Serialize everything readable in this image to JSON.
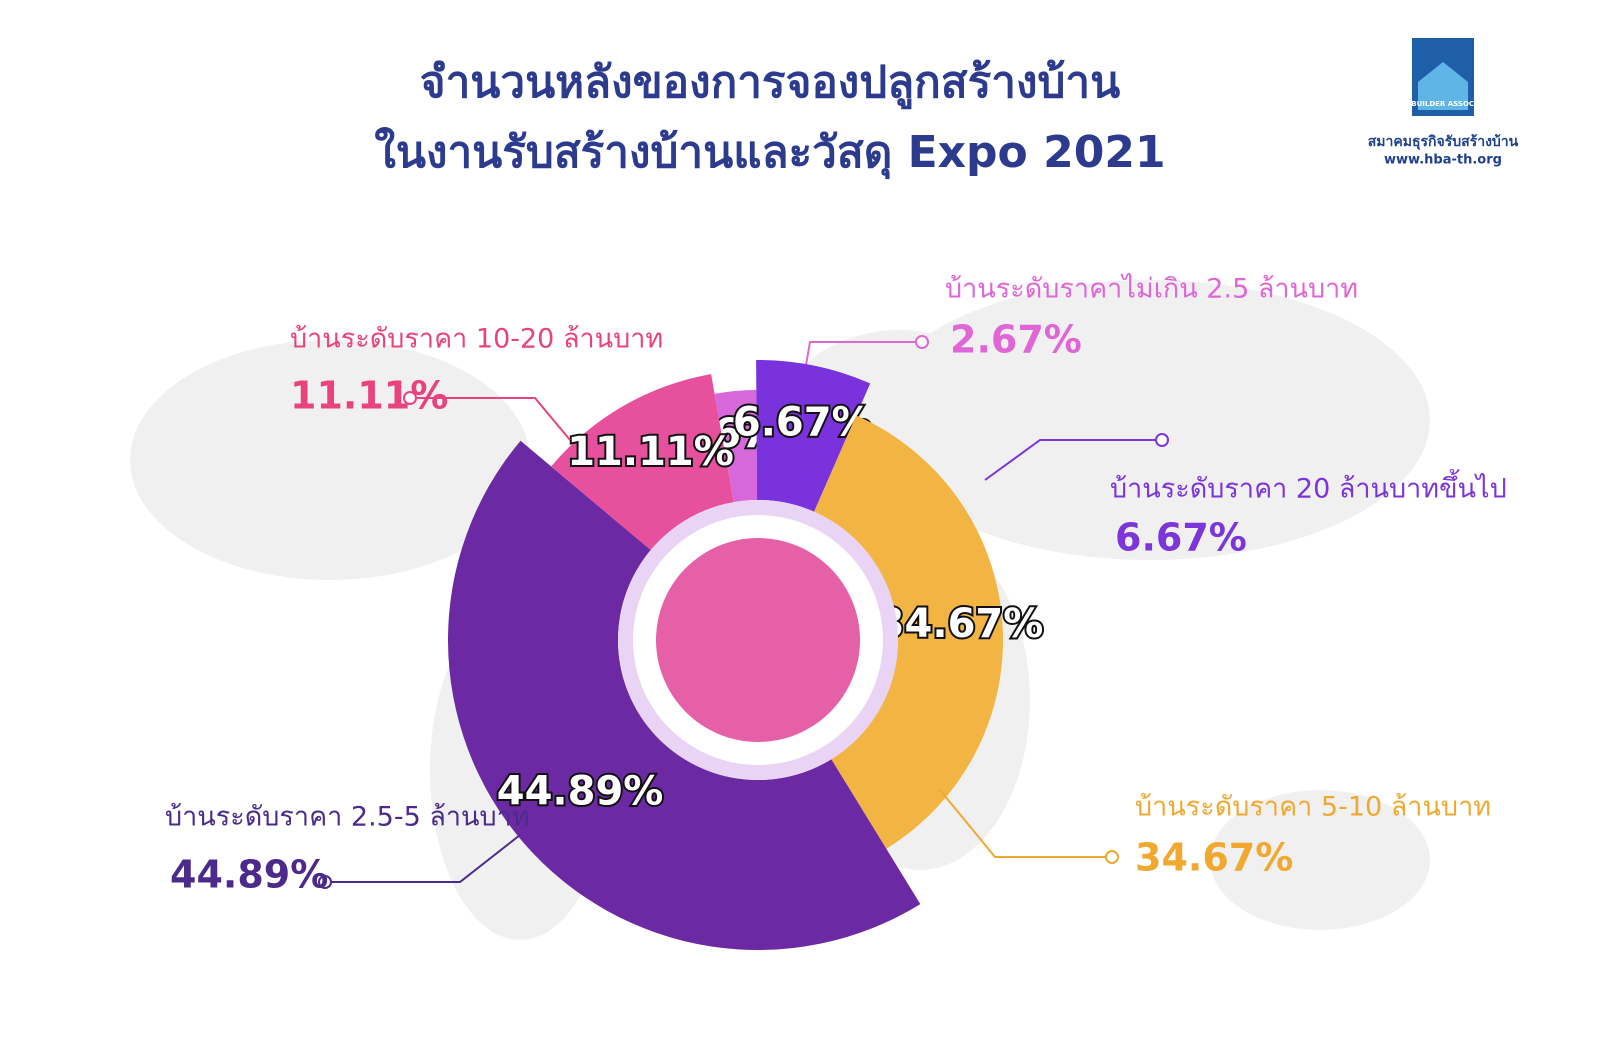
{
  "chart_data": {
    "type": "pie",
    "title": "จำนวนหลังของการจองปลูกสร้างบ้าน",
    "subtitle": "ในงานรับสร้างบ้านและวัสดุ Expo 2021",
    "logo": {
      "mark": "HOME BUILDER ASSOCIATION",
      "name": "สมาคมธุรกิจรับสร้างบ้าน",
      "url": "www.hba-th.org"
    },
    "categories": [
      "บ้านระดับราคาไม่เกิน 2.5 ล้านบาท",
      "บ้านระดับราคา 20 ล้านบาทขึ้นไป",
      "บ้านระดับราคา 5-10 ล้านบาท",
      "บ้านระดับราคา 2.5-5 ล้านบาท",
      "บ้านระดับราคา 10-20 ล้านบาท"
    ],
    "values": [
      2.67,
      6.67,
      34.67,
      44.89,
      11.11
    ],
    "value_labels": [
      "2.67%",
      "6.67%",
      "34.67%",
      "44.89%",
      "11.11%"
    ],
    "colors": [
      "#d768dc",
      "#7a33dc",
      "#f2b443",
      "#6b2aa3",
      "#e6509c"
    ],
    "label_colors": [
      "#e066d6",
      "#7b35d9",
      "#f0a830",
      "#4b2a8c",
      "#e8437f"
    ]
  }
}
